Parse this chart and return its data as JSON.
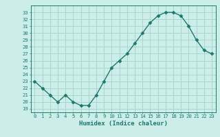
{
  "x": [
    0,
    1,
    2,
    3,
    4,
    5,
    6,
    7,
    8,
    9,
    10,
    11,
    12,
    13,
    14,
    15,
    16,
    17,
    18,
    19,
    20,
    21,
    22,
    23
  ],
  "y": [
    23,
    22,
    21,
    20,
    21,
    20,
    19.5,
    19.5,
    21,
    23,
    25,
    26,
    27,
    28.5,
    30,
    31.5,
    32.5,
    33,
    33,
    32.5,
    31,
    29,
    27.5,
    27
  ],
  "line_color": "#1a7a6e",
  "marker_color": "#1a7a6e",
  "bg_color": "#cceee8",
  "grid_color": "#aad4ce",
  "xlabel": "Humidex (Indice chaleur)",
  "ylim": [
    18.5,
    34.0
  ],
  "xlim": [
    -0.5,
    23.5
  ],
  "yticks": [
    19,
    20,
    21,
    22,
    23,
    24,
    25,
    26,
    27,
    28,
    29,
    30,
    31,
    32,
    33
  ],
  "xticks": [
    0,
    1,
    2,
    3,
    4,
    5,
    6,
    7,
    8,
    9,
    10,
    11,
    12,
    13,
    14,
    15,
    16,
    17,
    18,
    19,
    20,
    21,
    22,
    23
  ],
  "tick_fontsize": 5.2,
  "xlabel_fontsize": 6.5
}
